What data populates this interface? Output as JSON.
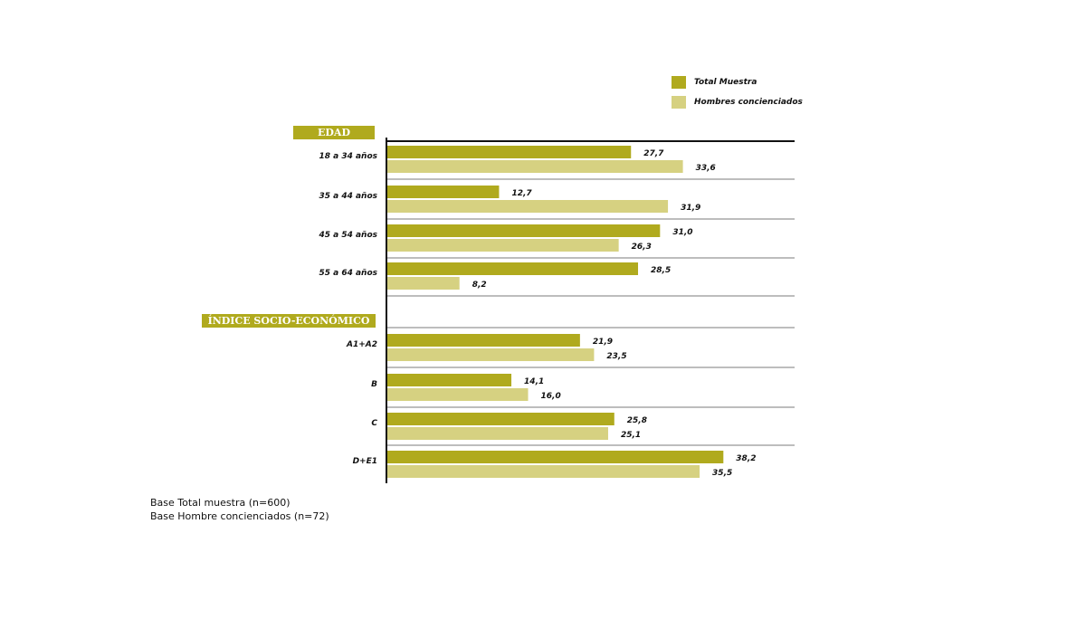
{
  "chart_data": {
    "type": "bar",
    "orientation": "horizontal",
    "colors": {
      "total": "#b0aa1e",
      "hombres": "#d6d181",
      "section_bg": "#b0aa1e"
    },
    "series": [
      {
        "name": "Total Muestra",
        "key": "total"
      },
      {
        "name": "Hombres concienciados",
        "key": "hombres"
      }
    ],
    "sections": [
      {
        "label": "EDAD",
        "groups": [
          {
            "category": "18 a 34 años",
            "values": [
              27.7,
              33.6
            ],
            "labels": [
              "27,7",
              "33,6"
            ]
          },
          {
            "category": "35 a 44 años",
            "values": [
              12.7,
              31.9
            ],
            "labels": [
              "12,7",
              "31,9"
            ]
          },
          {
            "category": "45 a 54 años",
            "values": [
              31.0,
              26.3
            ],
            "labels": [
              "31,0",
              "26,3"
            ]
          },
          {
            "category": "55 a 64 años",
            "values": [
              28.5,
              8.2
            ],
            "labels": [
              "28,5",
              "8,2"
            ]
          }
        ]
      },
      {
        "label": "ÍNDICE SOCIO-ECONÓMICO",
        "groups": [
          {
            "category": "A1+A2",
            "values": [
              21.9,
              23.5
            ],
            "labels": [
              "21,9",
              "23,5"
            ]
          },
          {
            "category": "B",
            "values": [
              14.1,
              16.0
            ],
            "labels": [
              "14,1",
              "16,0"
            ]
          },
          {
            "category": "C",
            "values": [
              25.8,
              25.1
            ],
            "labels": [
              "25,8",
              "25,1"
            ]
          },
          {
            "category": "D+E1",
            "values": [
              38.2,
              35.5
            ],
            "labels": [
              "38,2",
              "35,5"
            ]
          }
        ]
      }
    ],
    "xlim": [
      0,
      50
    ],
    "legend_position": "top-right"
  },
  "notes": [
    "Base Total muestra (n=600)",
    "Base Hombre concienciados (n=72)"
  ]
}
